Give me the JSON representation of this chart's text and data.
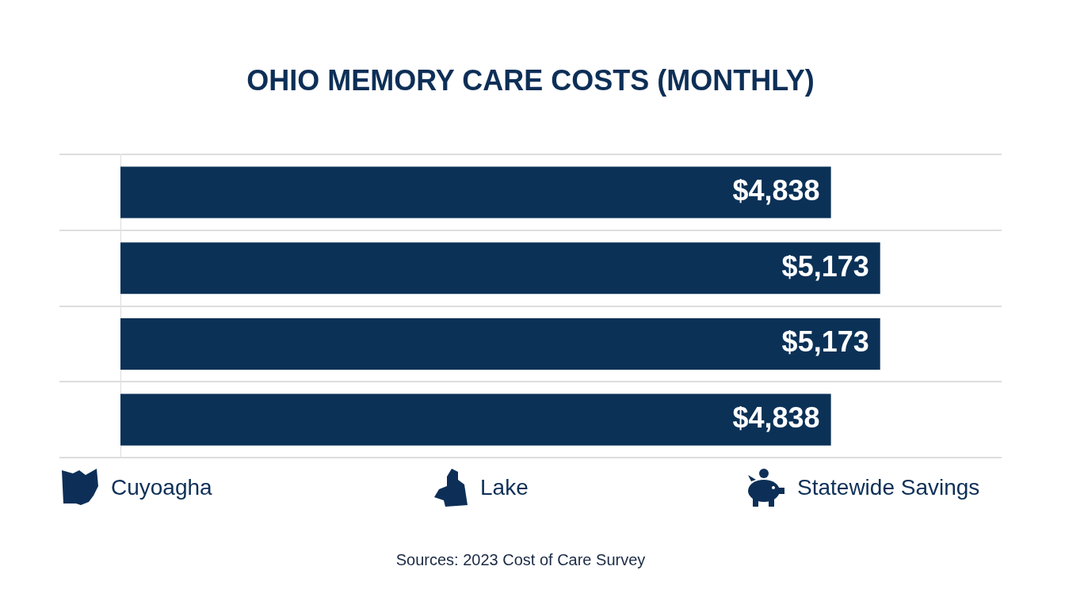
{
  "chart_data": {
    "type": "bar",
    "orientation": "horizontal",
    "title": "OHIO MEMORY CARE COSTS (MONTHLY)",
    "categories": [
      null,
      null,
      null,
      null
    ],
    "values": [
      4838,
      5173,
      5173,
      4838
    ],
    "value_labels": [
      "$4,838",
      "$5,173",
      "$5,173",
      "$4,838"
    ],
    "color": "#0b3157",
    "grid": "y",
    "legend": false,
    "annotations": [
      "Cuyoagha",
      "Lake",
      "Statewide Savings",
      "Sources: 2023 Cost of Care Survey"
    ]
  }
}
